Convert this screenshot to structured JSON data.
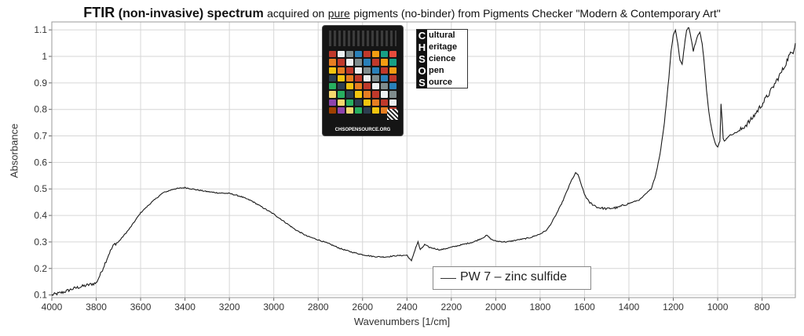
{
  "title": {
    "bold1": "FTIR",
    "bold2": "(non-invasive) spectrum",
    "normal1": "acquired on",
    "underlined": "pure",
    "normal2": "pigments (no-binder) from Pigments Checker \"Modern & Contemporary Art\""
  },
  "logo": {
    "letters": [
      "C",
      "H",
      "S",
      "O",
      "S"
    ],
    "words": [
      "ultural",
      "eritage",
      "cience",
      "pen",
      "ource"
    ]
  },
  "card": {
    "footer": "CHSOPENSOURCE.ORG"
  },
  "chart_data": {
    "type": "line",
    "xlabel": "Wavenumbers [1/cm]",
    "ylabel": "Absorbance",
    "xlim": [
      4000,
      650
    ],
    "ylim": [
      0.09,
      1.13
    ],
    "x_reversed": true,
    "grid": true,
    "legend_position": "bottom-center",
    "x_ticks": [
      4000,
      3800,
      3600,
      3400,
      3200,
      3000,
      2800,
      2600,
      2400,
      2200,
      2000,
      1800,
      1600,
      1400,
      1200,
      1000,
      800
    ],
    "y_ticks": [
      0.1,
      0.2,
      0.3,
      0.4,
      0.5,
      0.6,
      0.7,
      0.8,
      0.9,
      1,
      1.1
    ],
    "series": [
      {
        "name": "PW 7 – zinc sulfide",
        "color": "#1a1a1a",
        "x": [
          4000,
          3950,
          3900,
          3850,
          3800,
          3780,
          3760,
          3740,
          3720,
          3700,
          3650,
          3600,
          3550,
          3500,
          3450,
          3400,
          3350,
          3300,
          3250,
          3200,
          3150,
          3100,
          3050,
          3000,
          2950,
          2900,
          2850,
          2800,
          2750,
          2700,
          2650,
          2600,
          2550,
          2500,
          2450,
          2400,
          2380,
          2360,
          2350,
          2340,
          2320,
          2300,
          2250,
          2200,
          2150,
          2100,
          2060,
          2040,
          2020,
          2000,
          1950,
          1900,
          1850,
          1800,
          1770,
          1750,
          1730,
          1700,
          1680,
          1660,
          1640,
          1630,
          1620,
          1600,
          1580,
          1560,
          1540,
          1500,
          1450,
          1420,
          1400,
          1350,
          1300,
          1280,
          1260,
          1240,
          1220,
          1210,
          1200,
          1190,
          1180,
          1170,
          1160,
          1150,
          1140,
          1130,
          1120,
          1110,
          1100,
          1090,
          1080,
          1070,
          1060,
          1050,
          1040,
          1030,
          1020,
          1010,
          1000,
          990,
          985,
          980,
          975,
          970,
          960,
          950,
          900,
          850,
          800,
          760,
          740,
          720,
          700,
          680,
          660,
          650
        ],
        "y": [
          0.1,
          0.11,
          0.125,
          0.135,
          0.145,
          0.18,
          0.22,
          0.26,
          0.29,
          0.3,
          0.35,
          0.41,
          0.45,
          0.485,
          0.5,
          0.505,
          0.497,
          0.49,
          0.485,
          0.483,
          0.472,
          0.455,
          0.43,
          0.405,
          0.375,
          0.345,
          0.322,
          0.308,
          0.293,
          0.275,
          0.262,
          0.252,
          0.245,
          0.243,
          0.248,
          0.25,
          0.228,
          0.28,
          0.3,
          0.27,
          0.29,
          0.28,
          0.27,
          0.28,
          0.29,
          0.3,
          0.315,
          0.325,
          0.31,
          0.303,
          0.3,
          0.308,
          0.315,
          0.33,
          0.345,
          0.37,
          0.4,
          0.45,
          0.49,
          0.53,
          0.56,
          0.555,
          0.53,
          0.48,
          0.45,
          0.44,
          0.43,
          0.425,
          0.43,
          0.44,
          0.445,
          0.46,
          0.5,
          0.55,
          0.63,
          0.75,
          0.92,
          1.02,
          1.08,
          1.1,
          1.05,
          0.985,
          0.97,
          1.04,
          1.1,
          1.11,
          1.07,
          1.02,
          1.05,
          1.08,
          1.09,
          1.05,
          0.97,
          0.87,
          0.79,
          0.74,
          0.7,
          0.67,
          0.66,
          0.68,
          0.82,
          0.76,
          0.69,
          0.68,
          0.69,
          0.7,
          0.72,
          0.76,
          0.82,
          0.87,
          0.9,
          0.93,
          0.96,
          1.0,
          1.02,
          1.05
        ]
      }
    ]
  }
}
